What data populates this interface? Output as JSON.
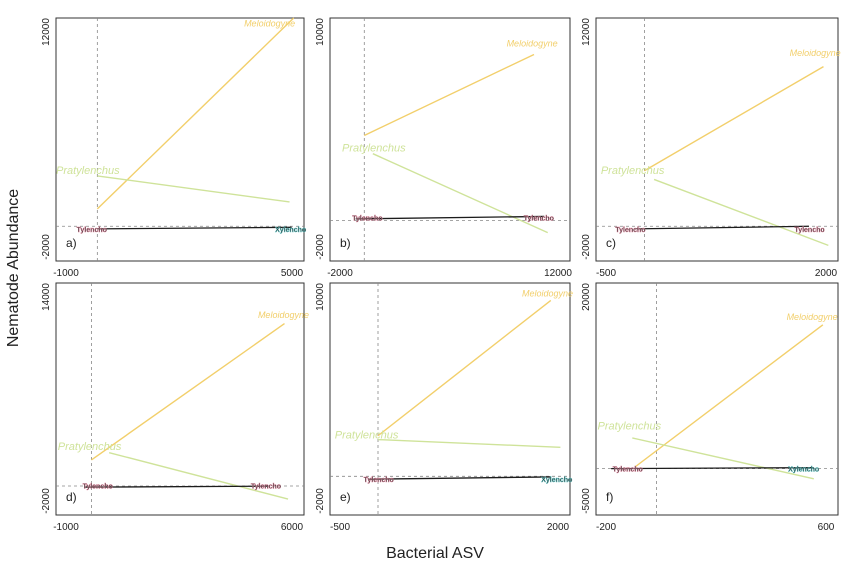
{
  "figure": {
    "ylabel": "Nematode Abundance",
    "xlabel": "Bacterial ASV"
  },
  "colors": {
    "meloidogyne": "#f2cf6b",
    "pratylenchus": "#cfe39a",
    "dark_line": "#1c1c1c",
    "tylencho": "#2a2a2a",
    "tylencho_halo": "#e08aa0",
    "xylencho_halo": "#5fc4c4",
    "axis_dash": "#888888"
  },
  "chart_data": [
    {
      "type": "line",
      "panel": "a)",
      "xlim": [
        -1000,
        5000
      ],
      "ylim": [
        -2000,
        12000
      ],
      "xticks": [
        "-1000",
        "5000"
      ],
      "yticks": [
        "12000",
        "-2000"
      ],
      "series": [
        {
          "name": "Meloidogyne",
          "x": [
            0,
            4750
          ],
          "y": [
            1000,
            12000
          ]
        },
        {
          "name": "Pratylenchus",
          "x": [
            0,
            4650
          ],
          "y": [
            2900,
            1400
          ]
        },
        {
          "name": "",
          "x": [
            0,
            4700
          ],
          "y": [
            -150,
            -60
          ]
        }
      ],
      "labels": [
        {
          "text": "Meloidogyne",
          "x": 3550,
          "y": 11500
        },
        {
          "text": "Pratylenchus",
          "x": -1000,
          "y": 3000
        },
        {
          "text": "Tylencho",
          "x": -500,
          "y": -150
        },
        {
          "text": "Xylencho",
          "x": 4300,
          "y": -150
        }
      ]
    },
    {
      "type": "line",
      "panel": "b)",
      "xlim": [
        -2000,
        12000
      ],
      "ylim": [
        -2000,
        10000
      ],
      "xticks": [
        "-2000",
        "12000"
      ],
      "yticks": [
        "10000",
        "-2000"
      ],
      "series": [
        {
          "name": "Meloidogyne",
          "x": [
            0,
            9900
          ],
          "y": [
            4200,
            8200
          ]
        },
        {
          "name": "Pratylenchus",
          "x": [
            500,
            10700
          ],
          "y": [
            3300,
            -600
          ]
        },
        {
          "name": "",
          "x": [
            -500,
            10500
          ],
          "y": [
            80,
            200
          ]
        }
      ],
      "labels": [
        {
          "text": "Meloidogyne",
          "x": 8300,
          "y": 8600
        },
        {
          "text": "Pratylenchus",
          "x": -1300,
          "y": 3400
        },
        {
          "text": "Tylencho",
          "x": -700,
          "y": 150
        },
        {
          "text": "Tylencho",
          "x": 9300,
          "y": 150
        }
      ]
    },
    {
      "type": "line",
      "panel": "c)",
      "xlim": [
        -500,
        2000
      ],
      "ylim": [
        -2000,
        12000
      ],
      "xticks": [
        "-500",
        "2000"
      ],
      "yticks": [
        "12000",
        "-2000"
      ],
      "series": [
        {
          "name": "Meloidogyne",
          "x": [
            0,
            1850
          ],
          "y": [
            3200,
            9200
          ]
        },
        {
          "name": "Pratylenchus",
          "x": [
            100,
            1900
          ],
          "y": [
            2700,
            -1100
          ]
        },
        {
          "name": "",
          "x": [
            -100,
            1700
          ],
          "y": [
            -150,
            0
          ]
        }
      ],
      "labels": [
        {
          "text": "Meloidogyne",
          "x": 1500,
          "y": 9800
        },
        {
          "text": "Pratylenchus",
          "x": -450,
          "y": 3000
        },
        {
          "text": "Tylencho",
          "x": -300,
          "y": -150
        },
        {
          "text": "Tylencho",
          "x": 1550,
          "y": -150
        }
      ]
    },
    {
      "type": "line",
      "panel": "d)",
      "xlim": [
        -1000,
        6000
      ],
      "ylim": [
        -2000,
        14000
      ],
      "xticks": [
        "-1000",
        "6000"
      ],
      "yticks": [
        "14000",
        "-2000"
      ],
      "series": [
        {
          "name": "Meloidogyne",
          "x": [
            0,
            5450
          ],
          "y": [
            1800,
            11200
          ]
        },
        {
          "name": "Pratylenchus",
          "x": [
            500,
            5550
          ],
          "y": [
            2300,
            -900
          ]
        },
        {
          "name": "",
          "x": [
            -200,
            5000
          ],
          "y": [
            -80,
            -10
          ]
        }
      ],
      "labels": [
        {
          "text": "Meloidogyne",
          "x": 4700,
          "y": 11600
        },
        {
          "text": "Pratylenchus",
          "x": -950,
          "y": 2500
        },
        {
          "text": "Tylencho",
          "x": -250,
          "y": 20
        },
        {
          "text": "Tylencho",
          "x": 4500,
          "y": 20
        }
      ]
    },
    {
      "type": "line",
      "panel": "e)",
      "xlim": [
        -500,
        2000
      ],
      "ylim": [
        -2000,
        10000
      ],
      "xticks": [
        "-500",
        "2000"
      ],
      "yticks": [
        "10000",
        "-2000"
      ],
      "series": [
        {
          "name": "Meloidogyne",
          "x": [
            0,
            1800
          ],
          "y": [
            2100,
            9100
          ]
        },
        {
          "name": "Pratylenchus",
          "x": [
            0,
            1900
          ],
          "y": [
            1900,
            1500
          ]
        },
        {
          "name": "",
          "x": [
            -100,
            1800
          ],
          "y": [
            -150,
            -30
          ]
        }
      ],
      "labels": [
        {
          "text": "Meloidogyne",
          "x": 1500,
          "y": 9300
        },
        {
          "text": "Pratylenchus",
          "x": -450,
          "y": 1950
        },
        {
          "text": "Tylencho",
          "x": -150,
          "y": -130
        },
        {
          "text": "Xylencho",
          "x": 1700,
          "y": -130
        }
      ]
    },
    {
      "type": "line",
      "panel": "f)",
      "xlim": [
        -200,
        600
      ],
      "ylim": [
        -5000,
        20000
      ],
      "xticks": [
        "-200",
        "600"
      ],
      "yticks": [
        "20000",
        "-5000"
      ],
      "series": [
        {
          "name": "Meloidogyne",
          "x": [
            -70,
            550
          ],
          "y": [
            200,
            15500
          ]
        },
        {
          "name": "Pratylenchus",
          "x": [
            -80,
            520
          ],
          "y": [
            3300,
            -1100
          ]
        },
        {
          "name": "",
          "x": [
            -150,
            520
          ],
          "y": [
            0,
            100
          ]
        }
      ],
      "labels": [
        {
          "text": "Meloidogyne",
          "x": 430,
          "y": 16000
        },
        {
          "text": "Pratylenchus",
          "x": -195,
          "y": 4200
        },
        {
          "text": "Tylencho",
          "x": -145,
          "y": 0
        },
        {
          "text": "Xylencho",
          "x": 435,
          "y": 0
        }
      ]
    }
  ]
}
